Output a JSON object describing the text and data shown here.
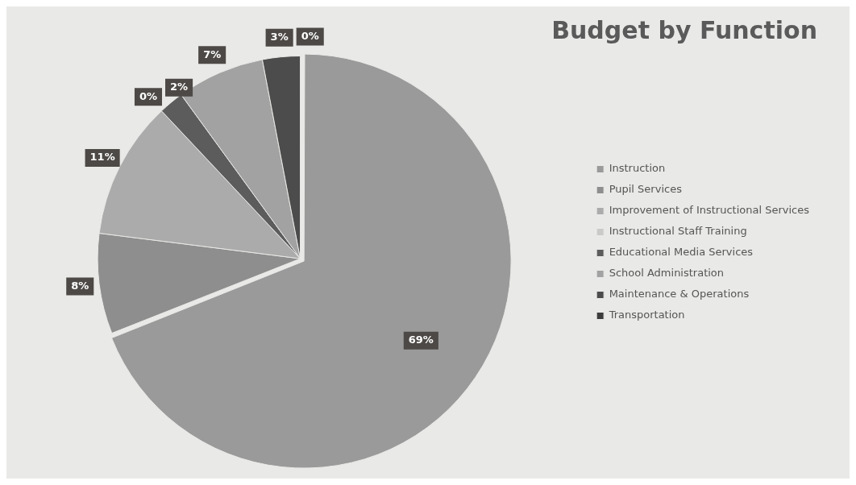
{
  "chart_data": {
    "type": "pie",
    "title": "Budget by Function",
    "categories": [
      "Instruction",
      "Pupil Services",
      "Improvement of Instructional Services",
      "Instructional Staff Training",
      "Educational Media Services",
      "School Administration",
      "Maintenance & Operations",
      "Transportation"
    ],
    "values": [
      69,
      8,
      11,
      0,
      2,
      7,
      3,
      0
    ],
    "colors": [
      "#9a9a9a",
      "#8e8e8e",
      "#ababab",
      "#cacaca",
      "#5c5c5c",
      "#a2a2a2",
      "#4c4c4c",
      "#3c3c3c"
    ],
    "value_labels": [
      "69%",
      "8%",
      "11%",
      "0%",
      "2%",
      "7%",
      "3%",
      "0%"
    ],
    "legend": "right"
  }
}
